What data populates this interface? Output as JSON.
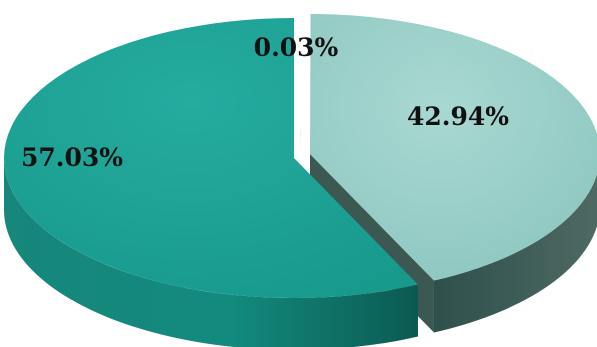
{
  "chart_data": {
    "type": "pie",
    "style": "3d-exploded",
    "legend": "none",
    "slices": [
      {
        "value": 0.03,
        "label": "0.03%",
        "color": "#3f8f86"
      },
      {
        "value": 42.94,
        "label": "42.94%",
        "color": "#96cdc6"
      },
      {
        "value": 57.03,
        "label": "57.03%",
        "color": "#1a9e91"
      }
    ]
  }
}
